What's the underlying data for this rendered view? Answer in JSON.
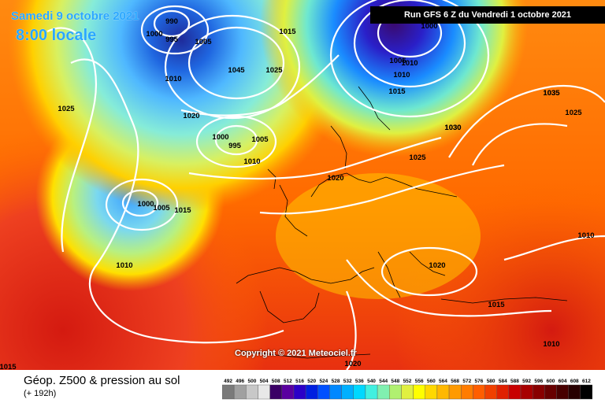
{
  "header": {
    "date_line": "Samedi 9 octobre 2021",
    "time_line": "8:00 locale",
    "run_label": "Run GFS 6 Z du Vendredi 1 octobre 2021"
  },
  "footer": {
    "copyright": "Copyright © 2021 Meteociel.fr",
    "title": "Géop. Z500 & pression au sol",
    "lead_time": "(+ 192h)"
  },
  "legend": {
    "values": [
      "492",
      "496",
      "500",
      "504",
      "508",
      "512",
      "516",
      "520",
      "524",
      "528",
      "532",
      "536",
      "540",
      "544",
      "548",
      "552",
      "556",
      "560",
      "564",
      "568",
      "572",
      "576",
      "580",
      "584",
      "588",
      "592",
      "596",
      "600",
      "604",
      "608",
      "612"
    ],
    "colors": [
      "#7a7a7a",
      "#a0a0a0",
      "#c8c8c8",
      "#e8e8e8",
      "#3b0066",
      "#5a00a0",
      "#2b00c8",
      "#0020e0",
      "#0050ff",
      "#0088ff",
      "#00b0ff",
      "#00d8ff",
      "#40f0e0",
      "#80f0b0",
      "#b0f070",
      "#e0f040",
      "#ffff00",
      "#ffd800",
      "#ffb800",
      "#ff9a00",
      "#ff7c00",
      "#ff5e00",
      "#f04000",
      "#e02000",
      "#c80000",
      "#a80000",
      "#880000",
      "#680000",
      "#480000",
      "#280000",
      "#000000"
    ]
  },
  "isobars": [
    {
      "text": "990"
    },
    {
      "text": "1000"
    },
    {
      "text": "995"
    },
    {
      "text": "1005"
    },
    {
      "text": "1010"
    },
    {
      "text": "1015"
    },
    {
      "text": "1025"
    },
    {
      "text": "1030"
    },
    {
      "text": "1035"
    },
    {
      "text": "1020"
    },
    {
      "text": "1045"
    },
    {
      "text": "1025"
    },
    {
      "text": "1000"
    },
    {
      "text": "1005"
    },
    {
      "text": "1010"
    },
    {
      "text": "1015"
    },
    {
      "text": "1035"
    },
    {
      "text": "1025"
    },
    {
      "text": "1030"
    },
    {
      "text": "1025"
    },
    {
      "text": "1020"
    },
    {
      "text": "1010"
    },
    {
      "text": "1020"
    },
    {
      "text": "1015"
    },
    {
      "text": "1010"
    },
    {
      "text": "1010"
    },
    {
      "text": "1015"
    },
    {
      "text": "1020"
    },
    {
      "text": "1000"
    },
    {
      "text": "995"
    },
    {
      "text": "1005"
    },
    {
      "text": "1010"
    },
    {
      "text": "1000"
    },
    {
      "text": "1005"
    },
    {
      "text": "1010"
    },
    {
      "text": "1015"
    }
  ]
}
